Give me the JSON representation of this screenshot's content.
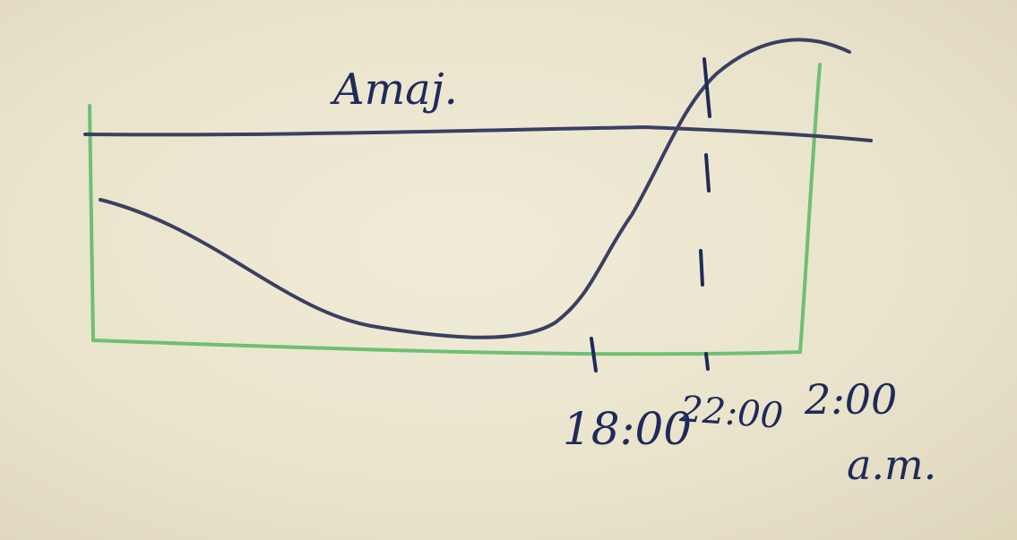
{
  "diagram": {
    "title": "Amaj.",
    "tick_labels": {
      "t1": "18:00",
      "t2": "22:00",
      "t3_line1": "2:00",
      "t3_line2": "a.m."
    }
  },
  "colors": {
    "ink": "#1f2a5a",
    "box": "#6fbf73",
    "paper": "#ece6d0"
  }
}
